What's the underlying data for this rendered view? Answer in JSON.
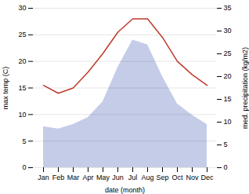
{
  "chart_data": {
    "type": "line",
    "categories": [
      "Jan",
      "Feb",
      "Mar",
      "Apr",
      "May",
      "Jun",
      "Jul",
      "Aug",
      "Sep",
      "Oct",
      "Nov",
      "Dec"
    ],
    "xlabel": "date (month)",
    "ylabel": "max temp (C)",
    "y2label": "med. precipitation (kg/m2)",
    "series": [
      {
        "type": "area",
        "axis": "y2",
        "color": "#c5cce8",
        "values": [
          9.0,
          8.5,
          9.5,
          11.0,
          14.5,
          22.0,
          28.0,
          27.0,
          20.0,
          14.0,
          11.5,
          9.5
        ]
      },
      {
        "type": "line",
        "color": "#c0392b",
        "values": [
          15.5,
          14.0,
          15.0,
          18.0,
          21.5,
          25.5,
          28.0,
          28.0,
          24.5,
          20.0,
          17.5,
          15.5
        ]
      }
    ],
    "ylim": [
      0,
      30
    ],
    "yticks": [
      0,
      5,
      10,
      15,
      20,
      25,
      30
    ],
    "y2lim": [
      0,
      35
    ],
    "y2ticks": [
      0,
      5,
      10,
      15,
      20,
      25,
      30,
      35
    ],
    "grid": true
  }
}
